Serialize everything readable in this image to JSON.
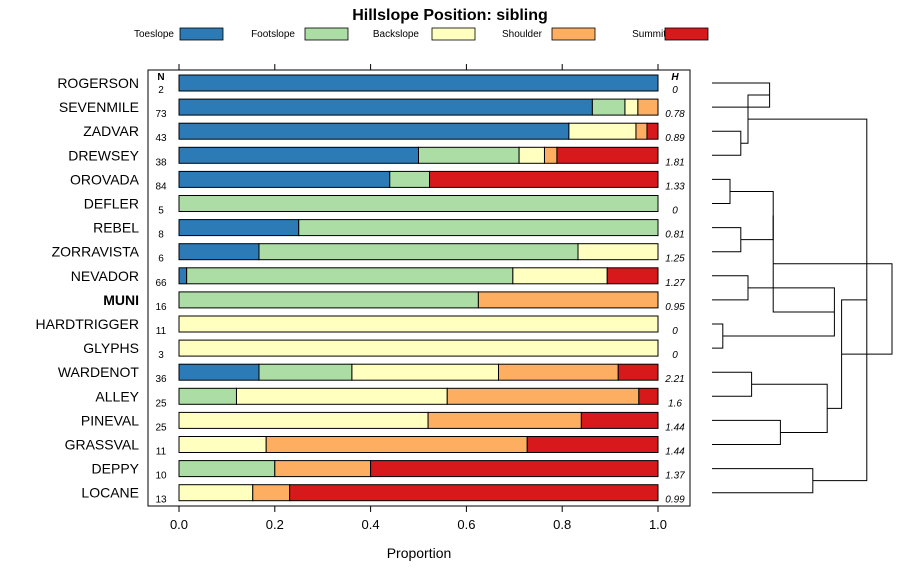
{
  "chart_data": {
    "type": "stacked-bar",
    "title": "Hillslope Position: sibling",
    "xlabel": "Proportion",
    "xlim": [
      0,
      1
    ],
    "xticks": [
      "0.0",
      "0.2",
      "0.4",
      "0.6",
      "0.8",
      "1.0"
    ],
    "n_header": "N",
    "h_header": "H",
    "legend": [
      {
        "name": "Toeslope",
        "color": "#2c7bb6"
      },
      {
        "name": "Footslope",
        "color": "#abdda4"
      },
      {
        "name": "Backslope",
        "color": "#ffffbf"
      },
      {
        "name": "Shoulder",
        "color": "#fdae61"
      },
      {
        "name": "Summit",
        "color": "#d7191c"
      }
    ],
    "rows": [
      {
        "name": "ROGERSON",
        "n": "2",
        "h": "0",
        "bold": false,
        "values": [
          1.0,
          0,
          0,
          0,
          0
        ]
      },
      {
        "name": "SEVENMILE",
        "n": "73",
        "h": "0.78",
        "bold": false,
        "values": [
          0.863,
          0.068,
          0.027,
          0.042,
          0
        ]
      },
      {
        "name": "ZADVAR",
        "n": "43",
        "h": "0.89",
        "bold": false,
        "values": [
          0.814,
          0,
          0.14,
          0.023,
          0.023
        ]
      },
      {
        "name": "DREWSEY",
        "n": "38",
        "h": "1.81",
        "bold": false,
        "values": [
          0.5,
          0.21,
          0.053,
          0.026,
          0.211
        ]
      },
      {
        "name": "OROVADA",
        "n": "84",
        "h": "1.33",
        "bold": false,
        "values": [
          0.44,
          0.083,
          0,
          0,
          0.477
        ]
      },
      {
        "name": "DEFLER",
        "n": "5",
        "h": "0",
        "bold": false,
        "values": [
          0,
          1.0,
          0,
          0,
          0
        ]
      },
      {
        "name": "REBEL",
        "n": "8",
        "h": "0.81",
        "bold": false,
        "values": [
          0.25,
          0.75,
          0,
          0,
          0
        ]
      },
      {
        "name": "ZORRAVISTA",
        "n": "6",
        "h": "1.25",
        "bold": false,
        "values": [
          0.167,
          0.666,
          0.167,
          0,
          0
        ]
      },
      {
        "name": "NEVADOR",
        "n": "66",
        "h": "1.27",
        "bold": false,
        "values": [
          0.016,
          0.681,
          0.197,
          0,
          0.106
        ]
      },
      {
        "name": "MUNI",
        "n": "16",
        "h": "0.95",
        "bold": true,
        "values": [
          0,
          0.625,
          0,
          0.375,
          0
        ]
      },
      {
        "name": "HARDTRIGGER",
        "n": "11",
        "h": "0",
        "bold": false,
        "values": [
          0,
          0,
          1.0,
          0,
          0
        ]
      },
      {
        "name": "GLYPHS",
        "n": "3",
        "h": "0",
        "bold": false,
        "values": [
          0,
          0,
          1.0,
          0,
          0
        ]
      },
      {
        "name": "WARDENOT",
        "n": "36",
        "h": "2.21",
        "bold": false,
        "values": [
          0.167,
          0.194,
          0.306,
          0.25,
          0.083
        ]
      },
      {
        "name": "ALLEY",
        "n": "25",
        "h": "1.6",
        "bold": false,
        "values": [
          0,
          0.12,
          0.44,
          0.4,
          0.04
        ]
      },
      {
        "name": "PINEVAL",
        "n": "25",
        "h": "1.44",
        "bold": false,
        "values": [
          0,
          0,
          0.52,
          0.32,
          0.16
        ]
      },
      {
        "name": "GRASSVAL",
        "n": "11",
        "h": "1.44",
        "bold": false,
        "values": [
          0,
          0,
          0.182,
          0.545,
          0.273
        ]
      },
      {
        "name": "DEPPY",
        "n": "10",
        "h": "1.37",
        "bold": false,
        "values": [
          0,
          0.2,
          0,
          0.2,
          0.6
        ]
      },
      {
        "name": "LOCANE",
        "n": "13",
        "h": "0.99",
        "bold": false,
        "values": [
          0,
          0,
          0.154,
          0.077,
          0.769
        ]
      }
    ],
    "dendrogram": {
      "merges": [
        [
          0,
          1,
          0.32
        ],
        [
          2,
          3,
          0.16
        ],
        [
          4,
          5,
          0.1
        ],
        [
          6,
          7,
          0.16
        ],
        [
          8,
          9,
          0.2
        ],
        [
          10,
          11,
          0.06
        ],
        [
          12,
          13,
          0.22
        ],
        [
          14,
          15,
          0.38
        ],
        [
          16,
          17,
          0.56
        ],
        [
          18,
          19,
          0.2
        ],
        [
          20,
          21,
          0.34
        ],
        [
          22,
          23,
          0.68
        ],
        [
          24,
          25,
          0.64
        ],
        [
          26,
          27,
          0.86
        ],
        [
          28,
          29,
          0.34
        ],
        [
          30,
          31,
          0.72
        ],
        [
          32,
          33,
          1.0
        ]
      ]
    }
  }
}
